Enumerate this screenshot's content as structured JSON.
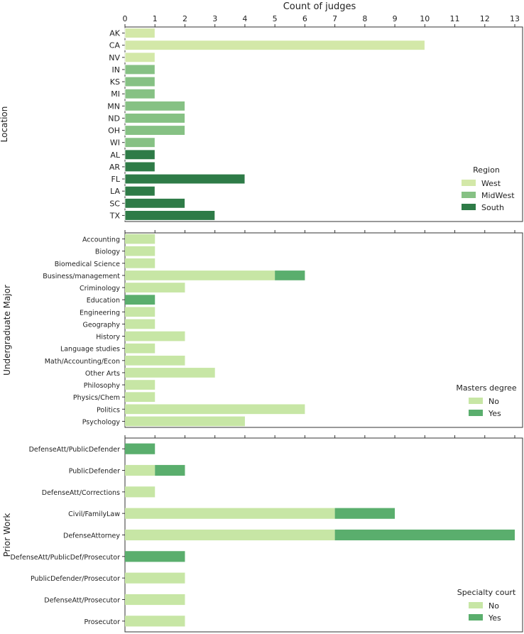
{
  "chart_data": [
    {
      "type": "bar",
      "orientation": "horizontal",
      "title": "Count of judges",
      "xlabel": "Count of judges",
      "ylabel": "Location",
      "xlim": [
        0,
        13
      ],
      "xticks": [
        "0",
        "1",
        "2",
        "3",
        "4",
        "5",
        "6",
        "7",
        "8",
        "9",
        "10",
        "11",
        "12",
        "13"
      ],
      "legend_title": "Region",
      "legend_placement": "bottom-right",
      "legend": [
        {
          "name": "West",
          "color": "#d3e8a8"
        },
        {
          "name": "MidWest",
          "color": "#86c184"
        },
        {
          "name": "South",
          "color": "#2e7b47"
        }
      ],
      "categories": [
        "AK",
        "CA",
        "NV",
        "IN",
        "KS",
        "MI",
        "MN",
        "ND",
        "OH",
        "WI",
        "AL",
        "AR",
        "FL",
        "LA",
        "SC",
        "TX"
      ],
      "values": [
        1,
        10,
        1,
        1,
        1,
        1,
        2,
        2,
        2,
        1,
        1,
        1,
        4,
        1,
        2,
        3
      ],
      "groups": [
        "West",
        "West",
        "West",
        "MidWest",
        "MidWest",
        "MidWest",
        "MidWest",
        "MidWest",
        "MidWest",
        "MidWest",
        "South",
        "South",
        "South",
        "South",
        "South",
        "South"
      ]
    },
    {
      "type": "bar",
      "orientation": "horizontal",
      "stacked": true,
      "ylabel": "Undergraduate Major",
      "xlim": [
        0,
        13
      ],
      "legend_title": "Masters degree",
      "legend_placement": "bottom-right",
      "categories": [
        "Accounting",
        "Biology",
        "Biomedical Science",
        "Business/management",
        "Criminology",
        "Education",
        "Engineering",
        "Geography",
        "History",
        "Language studies",
        "Math/Accounting/Econ",
        "Other Arts",
        "Philosophy",
        "Physics/Chem",
        "Politics",
        "Psychology"
      ],
      "series": [
        {
          "name": "No",
          "color": "#c7e6a5",
          "values": [
            1,
            1,
            1,
            5,
            2,
            0,
            1,
            1,
            2,
            1,
            2,
            3,
            1,
            1,
            6,
            4
          ]
        },
        {
          "name": "Yes",
          "color": "#5aae6d",
          "values": [
            0,
            0,
            0,
            1,
            0,
            1,
            0,
            0,
            0,
            0,
            0,
            0,
            0,
            0,
            0,
            0
          ]
        }
      ]
    },
    {
      "type": "bar",
      "orientation": "horizontal",
      "stacked": true,
      "ylabel": "Prior Work",
      "xlim": [
        0,
        13
      ],
      "legend_title": "Specialty court",
      "legend_placement": "bottom-right",
      "categories": [
        "DefenseAtt/PublicDefender",
        "PublicDefender",
        "DefenseAtt/Corrections",
        "Civil/FamilyLaw",
        "DefenseAttorney",
        "DefenseAtt/PublicDef/Prosecutor",
        "PublicDefender/Prosecutor",
        "DefenseAtt/Prosecutor",
        "Prosecutor"
      ],
      "series": [
        {
          "name": "No",
          "color": "#c7e6a5",
          "values": [
            0,
            1,
            1,
            7,
            7,
            0,
            2,
            2,
            2
          ]
        },
        {
          "name": "Yes",
          "color": "#5aae6d",
          "values": [
            1,
            1,
            0,
            2,
            6,
            2,
            0,
            0,
            0
          ]
        }
      ]
    }
  ]
}
